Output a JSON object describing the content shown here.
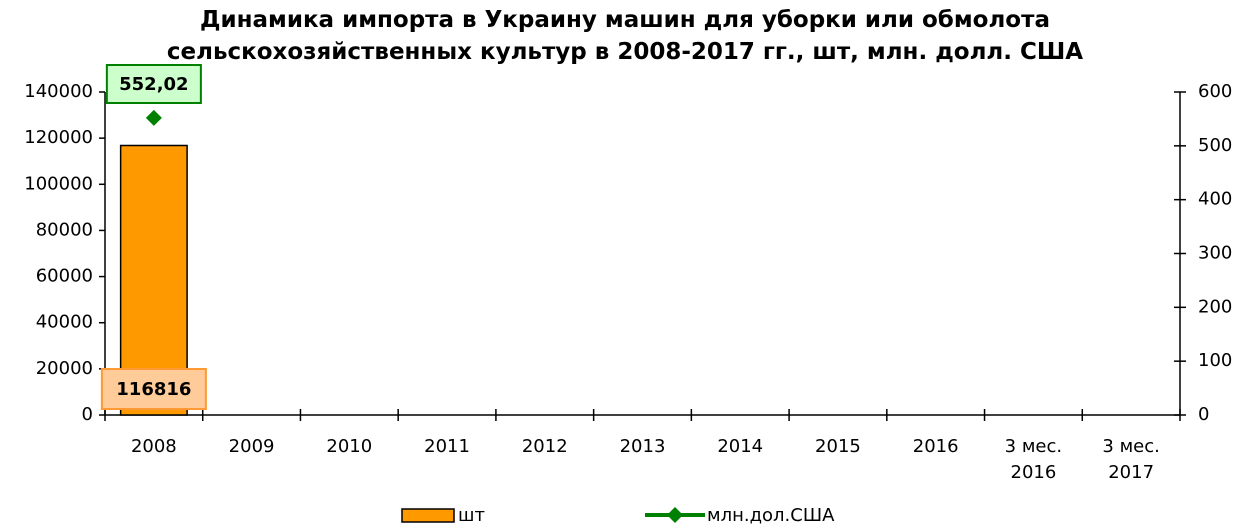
{
  "chart_data": {
    "type": "bar",
    "title": "Динамика импорта в Украину машин для уборки или обмолота сельскохозяйственных культур в 2008-2017 гг., шт, млн. долл. США",
    "categories": [
      "2008",
      "2009",
      "2010",
      "2011",
      "2012",
      "2013",
      "2014",
      "2015",
      "2016",
      "3 мес. 2016",
      "3 мес. 2017"
    ],
    "series": [
      {
        "name": "шт",
        "color": "#ff9900",
        "values": [
          116816,
          null,
          null,
          null,
          null,
          null,
          null,
          null,
          null,
          null,
          null
        ],
        "value_labels": [
          "116816",
          null,
          null,
          null,
          null,
          null,
          null,
          null,
          null,
          null,
          null
        ]
      },
      {
        "name": "млн.дол.США",
        "color": "#008000",
        "axis": "y2",
        "values": [
          552.02,
          null,
          null,
          null,
          null,
          null,
          null,
          null,
          null,
          null,
          null
        ],
        "value_labels": [
          "552,02",
          null,
          null,
          null,
          null,
          null,
          null,
          null,
          null,
          null,
          null
        ]
      }
    ],
    "ylim": [
      0,
      140000
    ],
    "yticks": [
      0,
      20000,
      40000,
      60000,
      80000,
      100000,
      120000,
      140000
    ],
    "y2lim": [
      0,
      600
    ],
    "y2ticks": [
      0,
      100,
      200,
      300,
      400,
      500,
      600
    ],
    "grid": false,
    "legend": "bottom"
  }
}
